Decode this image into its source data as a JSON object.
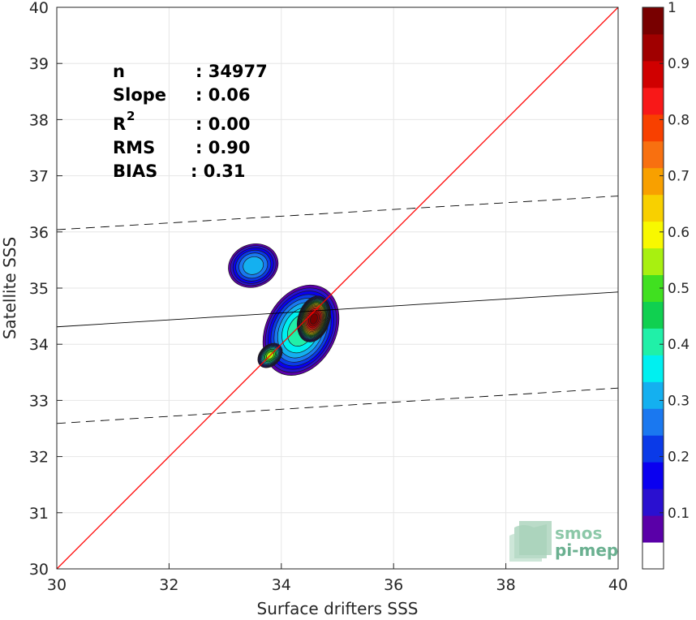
{
  "chart_data": {
    "type": "heatmap",
    "xlabel": "Surface drifters SSS",
    "ylabel": "Satellite SSS",
    "xlim": [
      30,
      40
    ],
    "ylim": [
      30,
      40
    ],
    "x_ticks": [
      "30",
      "32",
      "34",
      "36",
      "38",
      "40"
    ],
    "y_ticks": [
      "30",
      "31",
      "32",
      "33",
      "34",
      "35",
      "36",
      "37",
      "38",
      "39",
      "40"
    ],
    "grid": true,
    "stats": [
      {
        "key": "n",
        "sup": "",
        "value": ": 34977"
      },
      {
        "key": "Slope",
        "sup": "",
        "value": ": 0.06"
      },
      {
        "key": "R",
        "sup": "2",
        "value": ": 0.00"
      },
      {
        "key": "RMS",
        "sup": "",
        "value": ": 0.90"
      },
      {
        "key": "BIAS",
        "sup": "",
        "value": ": 0.31"
      }
    ],
    "lines": {
      "one_to_one": {
        "x": [
          30,
          40
        ],
        "y": [
          30,
          40
        ],
        "color": "#ff0000"
      },
      "regression": {
        "x": [
          30,
          40
        ],
        "y": [
          34.31,
          34.93
        ],
        "color": "#000000"
      },
      "upper_bound": {
        "x": [
          30,
          40
        ],
        "y": [
          36.04,
          36.64
        ],
        "color": "#000000",
        "style": "dashed"
      },
      "lower_bound": {
        "x": [
          30,
          40
        ],
        "y": [
          32.59,
          33.22
        ],
        "color": "#000000",
        "style": "dashed"
      }
    },
    "density_blobs": [
      {
        "cx": 33.5,
        "cy": 35.4,
        "rx": 0.45,
        "ry": 0.38,
        "rot": -20,
        "peak": 0.32
      },
      {
        "cx": 34.35,
        "cy": 34.25,
        "rx": 0.85,
        "ry": 0.62,
        "rot": -62,
        "peak": 0.42
      },
      {
        "cx": 34.58,
        "cy": 34.45,
        "rx": 0.42,
        "ry": 0.28,
        "rot": -72,
        "peak": 1.0
      },
      {
        "cx": 33.8,
        "cy": 33.8,
        "rx": 0.25,
        "ry": 0.18,
        "rot": -45,
        "peak": 0.55
      }
    ],
    "colorbar": {
      "range": [
        0,
        1
      ],
      "ticks": [
        "0.1",
        "0.2",
        "0.3",
        "0.4",
        "0.5",
        "0.6",
        "0.7",
        "0.8",
        "0.9",
        "1"
      ],
      "colors": [
        "#ffffff",
        "#5a00a8",
        "#2a10d0",
        "#0a00f0",
        "#0a3ae8",
        "#1a78f0",
        "#14b0f0",
        "#00f0f0",
        "#20f0a8",
        "#10d050",
        "#40e020",
        "#a8f010",
        "#f8f800",
        "#f8d000",
        "#f8a000",
        "#f87010",
        "#f84000",
        "#f81818",
        "#d00000",
        "#a00000",
        "#780000"
      ]
    }
  },
  "logo": {
    "line1": "smos",
    "line2": "pi-mep"
  }
}
